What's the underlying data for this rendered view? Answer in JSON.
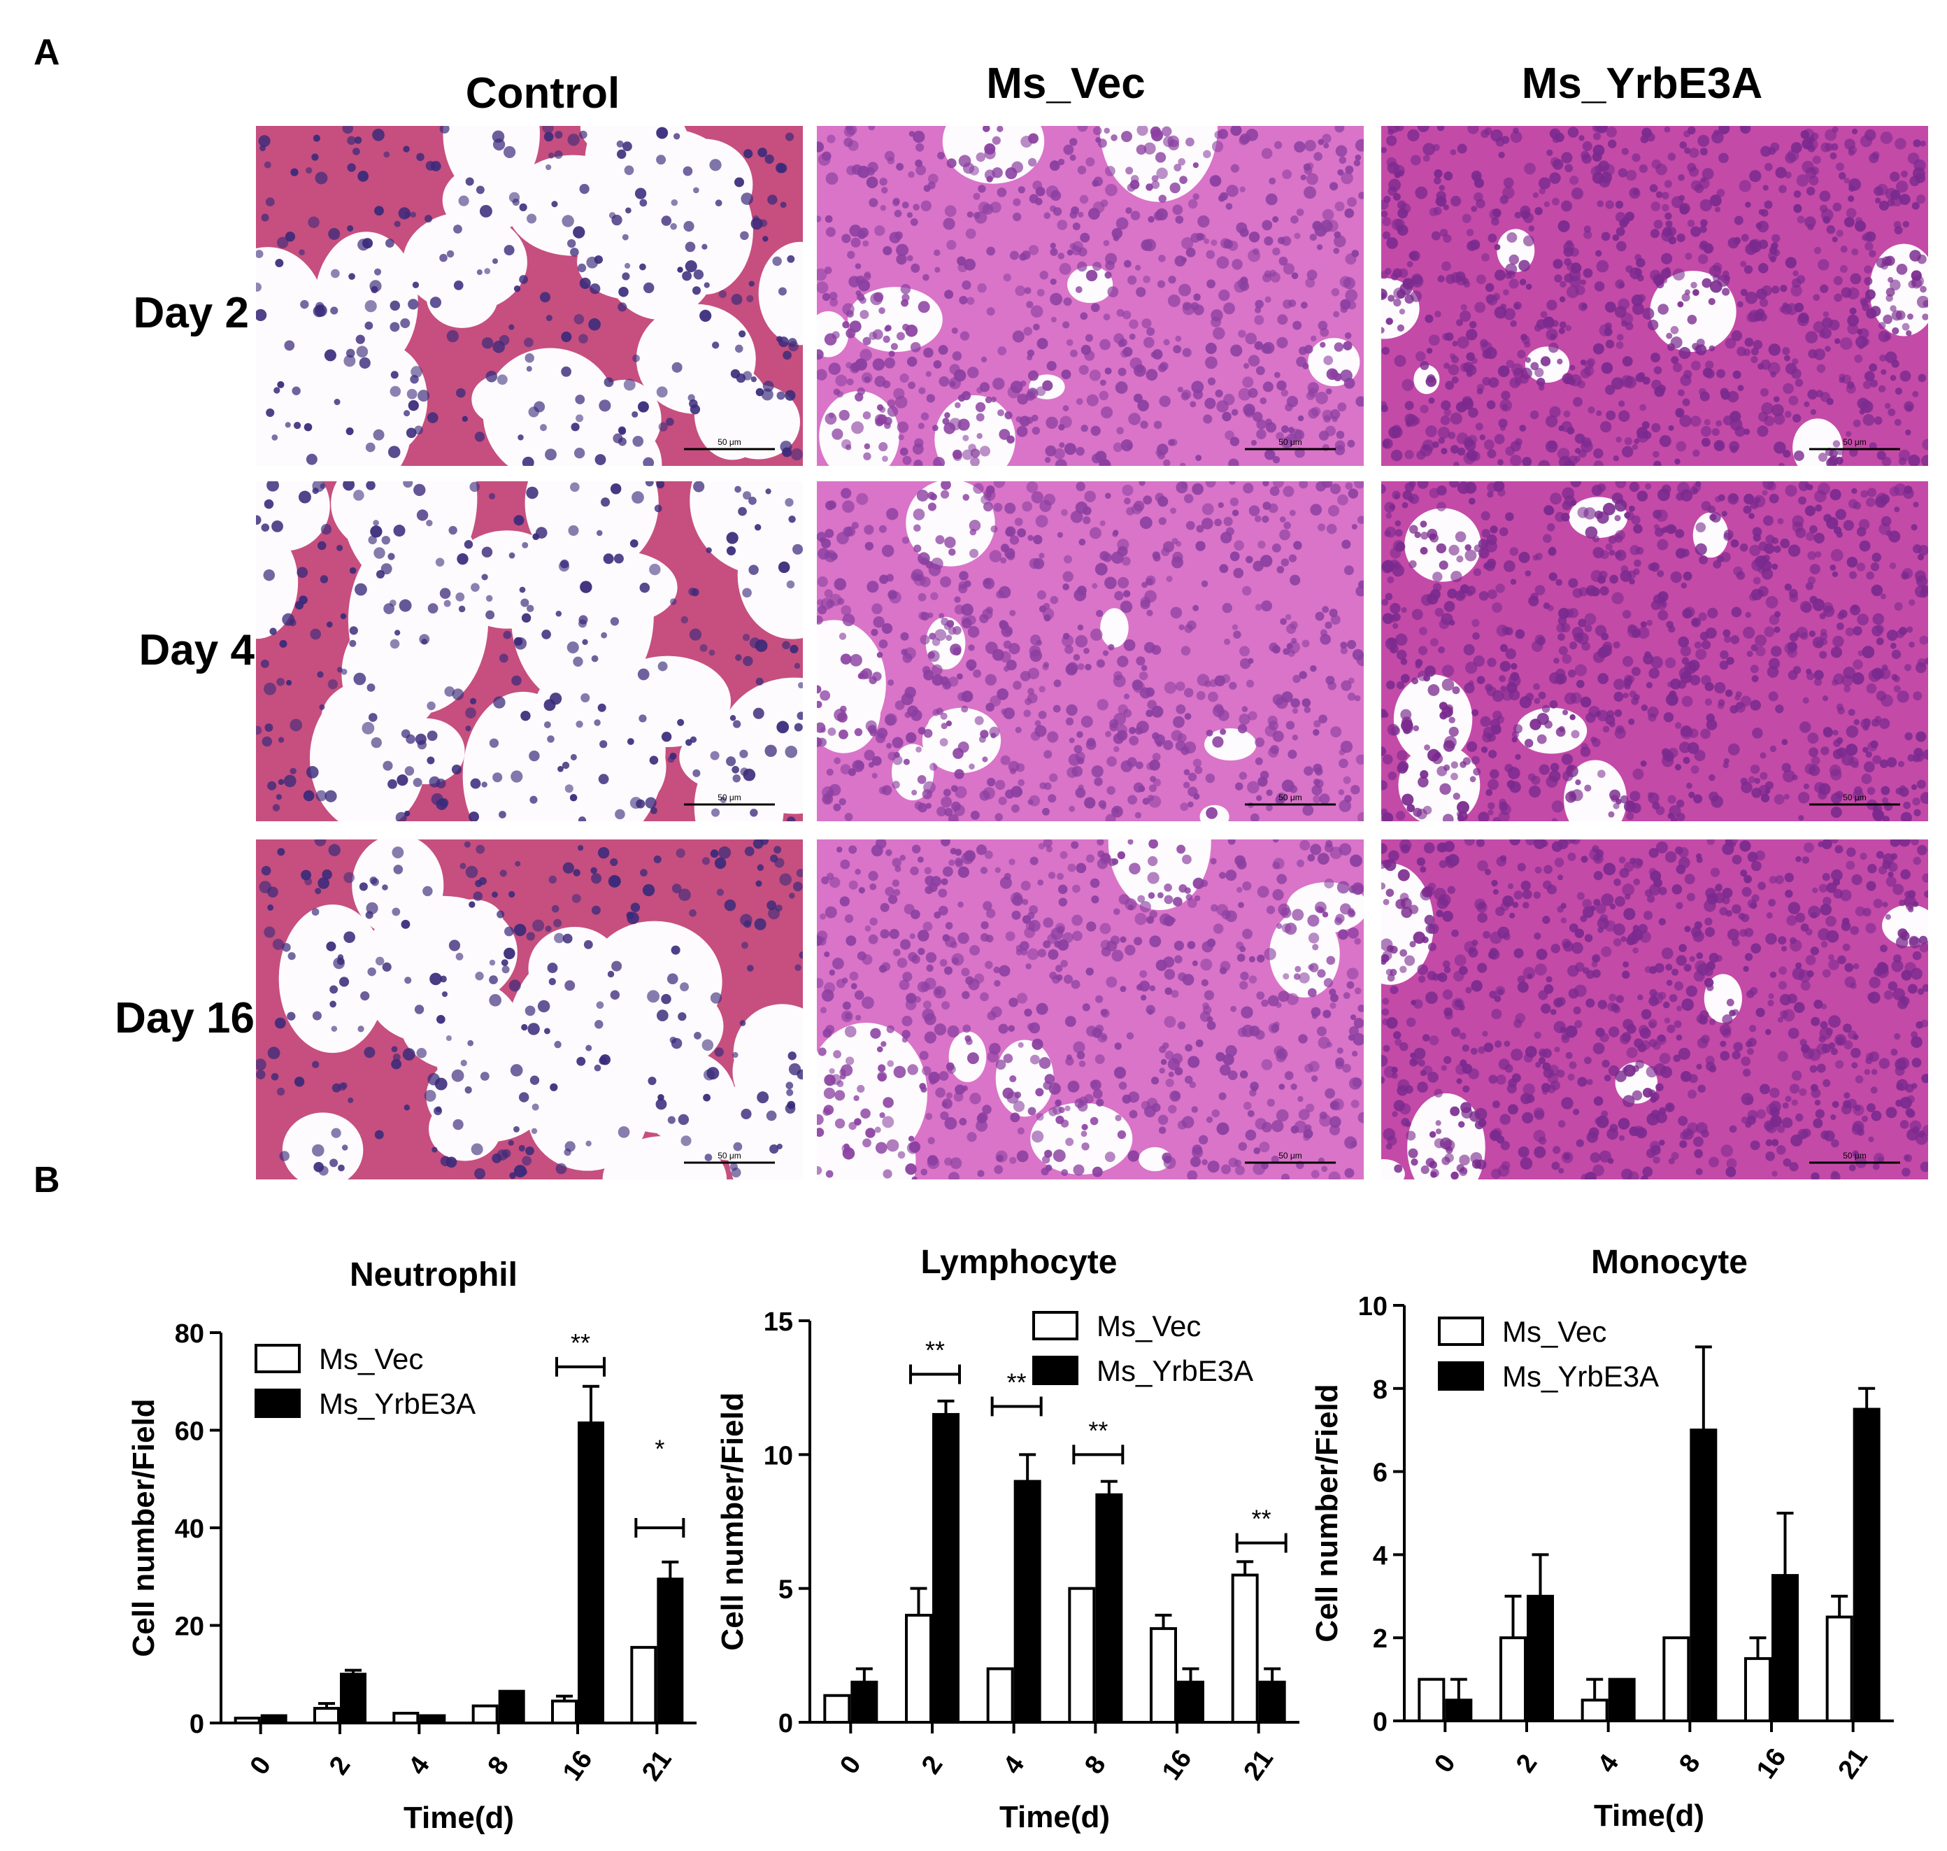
{
  "panel_a": {
    "label": "A",
    "columns": [
      "Control",
      "Ms_Vec",
      "Ms_YrbE3A"
    ],
    "rows": [
      "Day 2",
      "Day 4",
      "Day 16"
    ],
    "scale_bar_text": "50 μm",
    "colors": {
      "control_bg": "#f7f0f4",
      "control_tissue": "#c64f7f",
      "control_nuclei": "#3a2a7a",
      "vec_bg": "#f3e2f1",
      "vec_tissue": "#d974c8",
      "vec_nuclei": "#8a3fa0",
      "yrb_bg": "#e8d8ea",
      "yrb_tissue": "#c44aa8",
      "yrb_nuclei": "#7a2a8e"
    }
  },
  "panel_b": {
    "label": "B"
  },
  "chart_data": [
    {
      "type": "bar",
      "title": "Neutrophil",
      "xlabel": "Time(d)",
      "ylabel": "Cell number/Field",
      "categories": [
        "0",
        "2",
        "4",
        "8",
        "16",
        "21"
      ],
      "ylim": [
        0,
        80
      ],
      "yticks": [
        "0",
        "20",
        "40",
        "60",
        "80"
      ],
      "series": [
        {
          "name": "Ms_Vec",
          "fill": "#ffffff",
          "values": [
            1,
            3,
            2,
            3.5,
            4.5,
            15.5
          ],
          "errors": [
            0.2,
            1,
            0.3,
            0.5,
            1,
            0.5
          ]
        },
        {
          "name": "Ms_YrbE3A",
          "fill": "#000000",
          "values": [
            1.5,
            10,
            1.5,
            6.5,
            61.5,
            29.5
          ],
          "errors": [
            0.3,
            0.8,
            0.3,
            0.5,
            7.5,
            3.5
          ]
        }
      ],
      "annotations": [
        {
          "text": "**",
          "category": "16",
          "y": 73,
          "bracket": true
        },
        {
          "text": "*",
          "category": "21",
          "y": 55,
          "bracket": false
        },
        {
          "text": "",
          "category": "21",
          "y": 40,
          "bracket": true
        }
      ],
      "legend": "top-left"
    },
    {
      "type": "bar",
      "title": "Lymphocyte",
      "xlabel": "Time(d)",
      "ylabel": "Cell number/Field",
      "categories": [
        "0",
        "2",
        "4",
        "8",
        "16",
        "21"
      ],
      "ylim": [
        0,
        15
      ],
      "yticks": [
        "0",
        "5",
        "10",
        "15"
      ],
      "series": [
        {
          "name": "Ms_Vec",
          "fill": "#ffffff",
          "values": [
            1,
            4,
            2,
            5,
            3.5,
            5.5
          ],
          "errors": [
            0.05,
            1,
            0.05,
            0.05,
            0.5,
            0.5
          ]
        },
        {
          "name": "Ms_YrbE3A",
          "fill": "#000000",
          "values": [
            1.5,
            11.5,
            9,
            8.5,
            1.5,
            1.5
          ],
          "errors": [
            0.5,
            0.5,
            1,
            0.5,
            0.5,
            0.5
          ]
        }
      ],
      "annotations": [
        {
          "text": "**",
          "category": "2",
          "y": 13,
          "bracket": true
        },
        {
          "text": "**",
          "category": "4",
          "y": 11.8,
          "bracket": true
        },
        {
          "text": "**",
          "category": "8",
          "y": 10,
          "bracket": true
        },
        {
          "text": "**",
          "category": "21",
          "y": 6.7,
          "bracket": true
        }
      ],
      "legend": "top-right"
    },
    {
      "type": "bar",
      "title": "Monocyte",
      "xlabel": "Time(d)",
      "ylabel": "Cell number/Field",
      "categories": [
        "0",
        "2",
        "4",
        "8",
        "16",
        "21"
      ],
      "ylim": [
        0,
        10
      ],
      "yticks": [
        "0",
        "2",
        "4",
        "6",
        "8",
        "10"
      ],
      "series": [
        {
          "name": "Ms_Vec",
          "fill": "#ffffff",
          "values": [
            1,
            2,
            0.5,
            2,
            1.5,
            2.5
          ],
          "errors": [
            0.05,
            1,
            0.5,
            0.05,
            0.5,
            0.5
          ]
        },
        {
          "name": "Ms_YrbE3A",
          "fill": "#000000",
          "values": [
            0.5,
            3,
            1,
            7,
            3.5,
            7.5
          ],
          "errors": [
            0.5,
            1,
            0.05,
            2,
            1.5,
            0.5
          ]
        }
      ],
      "annotations": [],
      "legend": "top-left"
    }
  ]
}
